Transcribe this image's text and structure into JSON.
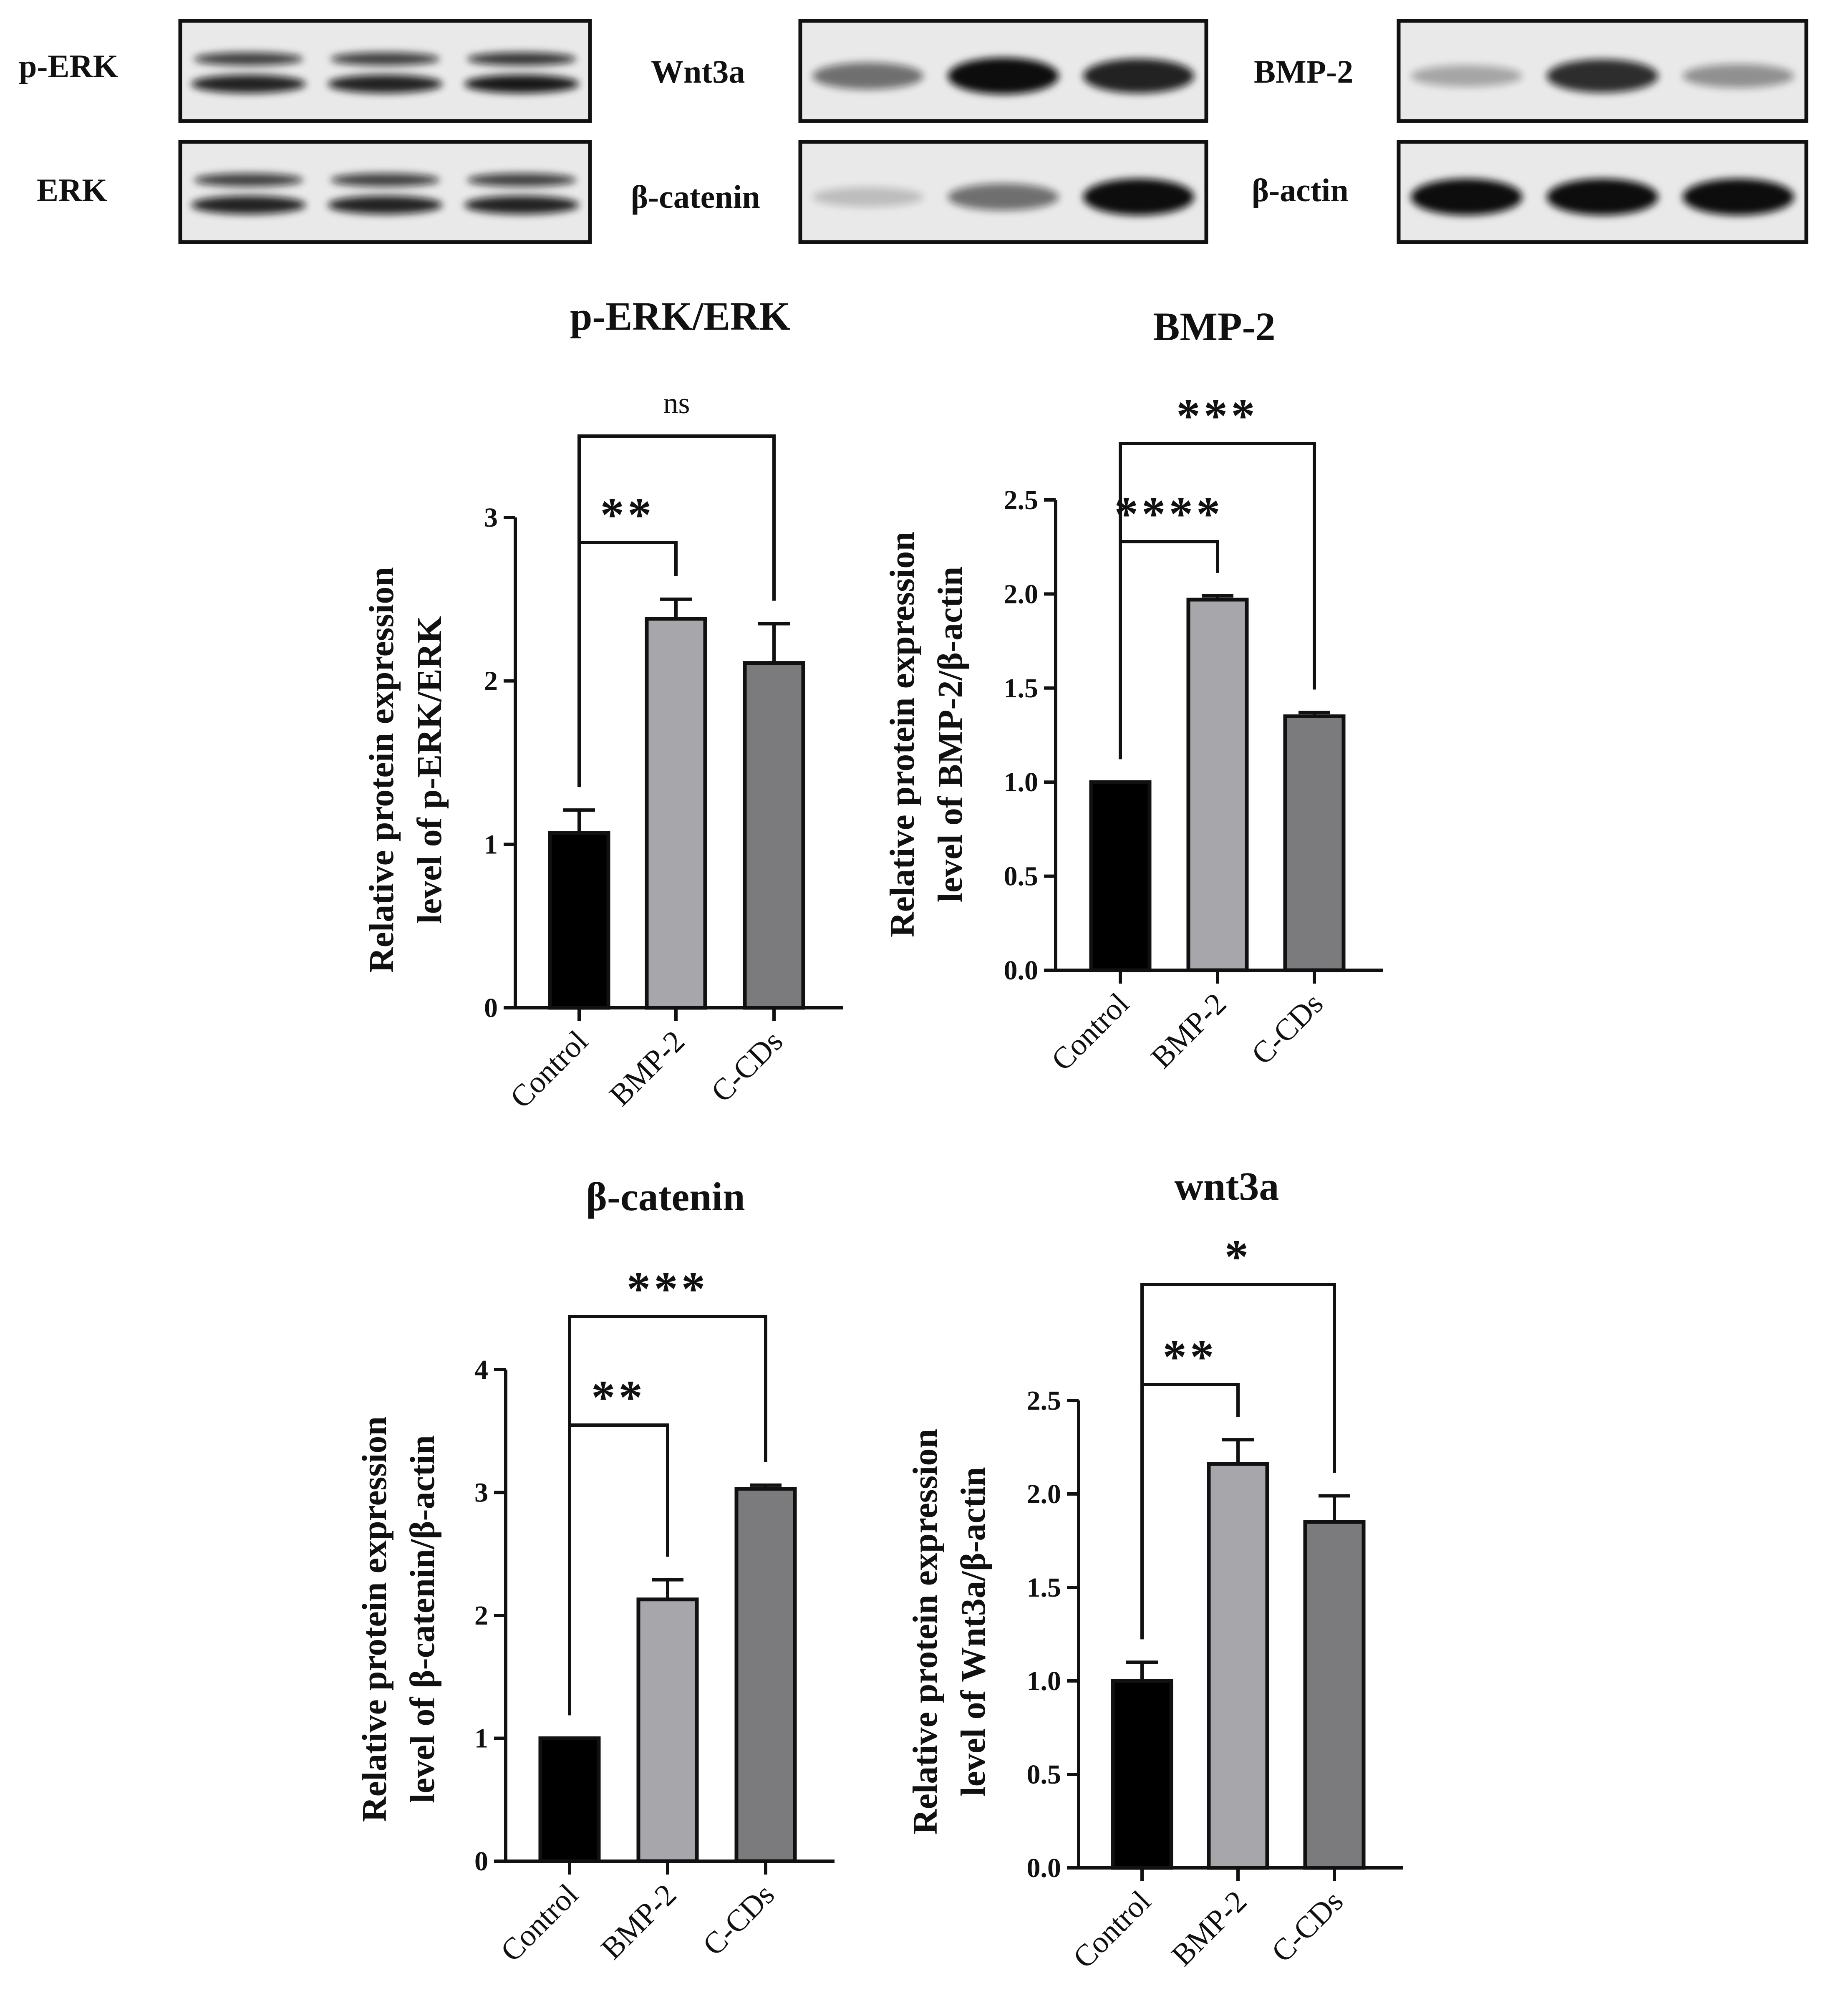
{
  "blots": [
    {
      "label": "p-ERK",
      "band_intensity": [
        0.9,
        0.9,
        0.95
      ],
      "doublet": true
    },
    {
      "label": "ERK",
      "band_intensity": [
        0.9,
        0.9,
        0.9
      ],
      "doublet": true
    },
    {
      "label": "Wnt3a",
      "band_intensity": [
        0.55,
        1.0,
        0.9
      ],
      "doublet": false
    },
    {
      "label": "β-catenin",
      "band_intensity": [
        0.2,
        0.55,
        1.0
      ],
      "doublet": false
    },
    {
      "label": "BMP-2",
      "band_intensity": [
        0.3,
        0.85,
        0.4
      ],
      "doublet": false
    },
    {
      "label": "β-actin",
      "band_intensity": [
        1.0,
        1.0,
        1.0
      ],
      "doublet": false
    }
  ],
  "chart_data": [
    {
      "type": "bar",
      "title": "p-ERK/ERK",
      "categories": [
        "Control",
        "BMP-2",
        "C-CDs"
      ],
      "values": [
        1.07,
        2.38,
        2.11
      ],
      "errors": [
        0.14,
        0.12,
        0.24
      ],
      "ylabel_line1": "Relative protein expression",
      "ylabel_line2": "level of p-ERK/ERK",
      "ylim": [
        0,
        3
      ],
      "yticks": [
        "0",
        "1",
        "2",
        "3"
      ],
      "colors": [
        "#000000",
        "#a6a6ab",
        "#7b7b7d"
      ],
      "significance": [
        {
          "from": 0,
          "to": 1,
          "label": "**"
        },
        {
          "from": 0,
          "to": 2,
          "label": "ns"
        }
      ]
    },
    {
      "type": "bar",
      "title": "BMP-2",
      "categories": [
        "Control",
        "BMP-2",
        "C-CDs"
      ],
      "values": [
        1.0,
        1.97,
        1.35
      ],
      "errors": [
        0.0,
        0.02,
        0.02
      ],
      "ylabel_line1": "Relative protein expression",
      "ylabel_line2": "level of BMP-2/β-actin",
      "ylim": [
        0,
        2.5
      ],
      "yticks": [
        "0.0",
        "0.5",
        "1.0",
        "1.5",
        "2.0",
        "2.5"
      ],
      "colors": [
        "#000000",
        "#a6a6ab",
        "#7b7b7d"
      ],
      "significance": [
        {
          "from": 0,
          "to": 1,
          "label": "****"
        },
        {
          "from": 0,
          "to": 2,
          "label": "***"
        }
      ]
    },
    {
      "type": "bar",
      "title": "β-catenin",
      "categories": [
        "Control",
        "BMP-2",
        "C-CDs"
      ],
      "values": [
        1.0,
        2.13,
        3.03
      ],
      "errors": [
        0.0,
        0.16,
        0.03
      ],
      "ylabel_line1": "Relative protein expression",
      "ylabel_line2": "level of β-catenin/β-actin",
      "ylim": [
        0,
        4
      ],
      "yticks": [
        "0",
        "1",
        "2",
        "3",
        "4"
      ],
      "colors": [
        "#000000",
        "#a6a6ab",
        "#7b7b7d"
      ],
      "significance": [
        {
          "from": 0,
          "to": 1,
          "label": "**"
        },
        {
          "from": 0,
          "to": 2,
          "label": "***"
        }
      ]
    },
    {
      "type": "bar",
      "title": "wnt3a",
      "categories": [
        "Control",
        "BMP-2",
        "C-CDs"
      ],
      "values": [
        1.0,
        2.16,
        1.85
      ],
      "errors": [
        0.1,
        0.13,
        0.14
      ],
      "ylabel_line1": "Relative protein expression",
      "ylabel_line2": "level of Wnt3a/β-actin",
      "ylim": [
        0,
        2.5
      ],
      "yticks": [
        "0.0",
        "0.5",
        "1.0",
        "1.5",
        "2.0",
        "2.5"
      ],
      "colors": [
        "#000000",
        "#a6a6ab",
        "#7b7b7d"
      ],
      "significance": [
        {
          "from": 0,
          "to": 1,
          "label": "**"
        },
        {
          "from": 0,
          "to": 2,
          "label": "*"
        }
      ]
    }
  ]
}
